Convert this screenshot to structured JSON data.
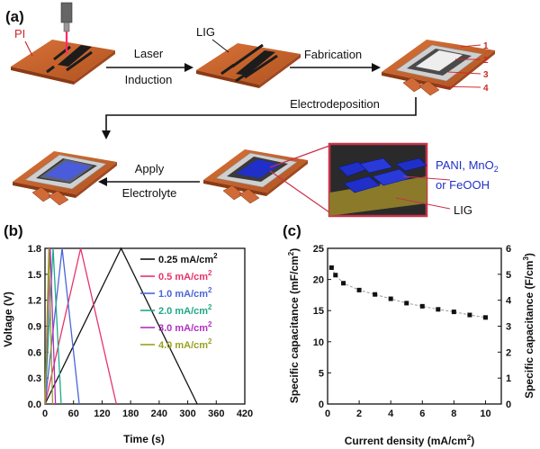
{
  "panel_a": {
    "label": "(a)",
    "pi_label": "PI",
    "step1_line1": "Laser",
    "step1_line2": "Induction",
    "lig_label": "LIG",
    "step2": "Fabrication",
    "layer_numbers": [
      "1",
      "2",
      "3",
      "4"
    ],
    "step3": "Electrodeposition",
    "step4_line1": "Apply",
    "step4_line2": "Electrolyte",
    "zoom_line1_a": "PANI, MnO",
    "zoom_line1_sub": "2",
    "zoom_line2": "or FeOOH",
    "zoom_lig": "LIG",
    "colors": {
      "substrate": "#c8642e",
      "substrate_dark": "#8a3a14",
      "lig": "#1c1c1c",
      "electrode_blue": "#1f2fc8",
      "zoom_frame": "#c8324a",
      "arrow": "#111111"
    }
  },
  "chart_data": [
    {
      "panel": "(b)",
      "type": "line",
      "title": "",
      "xlabel": "Time (s)",
      "ylabel": "Voltage (V)",
      "xlim": [
        0,
        420
      ],
      "ylim": [
        0,
        1.8
      ],
      "x_ticks": [
        "0",
        "60",
        "120",
        "180",
        "240",
        "300",
        "360",
        "420"
      ],
      "y_ticks": [
        "0.0",
        "0.3",
        "0.6",
        "0.9",
        "1.2",
        "1.5",
        "1.8"
      ],
      "legend_position": "top-right",
      "unit_superscript": "2",
      "series": [
        {
          "name": "0.25 mA/cm",
          "color": "#111111",
          "x": [
            0,
            160,
            320
          ],
          "y": [
            0,
            1.8,
            0
          ]
        },
        {
          "name": "0.5 mA/cm",
          "color": "#e8336a",
          "x": [
            0,
            75,
            150
          ],
          "y": [
            0,
            1.8,
            0
          ]
        },
        {
          "name": "1.0 mA/cm",
          "color": "#4a66d8",
          "x": [
            0,
            36,
            72
          ],
          "y": [
            0,
            1.8,
            0
          ]
        },
        {
          "name": "2.0 mA/cm",
          "color": "#20a888",
          "x": [
            0,
            17,
            34
          ],
          "y": [
            0,
            1.8,
            0
          ]
        },
        {
          "name": "3.0 mA/cm",
          "color": "#b030c0",
          "x": [
            0,
            11,
            22
          ],
          "y": [
            0,
            1.8,
            0
          ]
        },
        {
          "name": "4.0 mA/cm",
          "color": "#9aa020",
          "x": [
            0,
            8,
            16
          ],
          "y": [
            0,
            1.8,
            0
          ]
        }
      ]
    },
    {
      "panel": "(c)",
      "type": "scatter",
      "title": "",
      "xlabel": "Current density (mA/cm",
      "xlabel_sup": "2",
      "xlabel_end": ")",
      "ylabel": "Specific capacitance (mF/cm",
      "ylabel_sup": "2",
      "ylabel_end": ")",
      "y2label": "Specific capacitance (F/cm",
      "y2label_sup": "3",
      "y2label_end": ")",
      "xlim": [
        0,
        11
      ],
      "ylim": [
        0,
        25
      ],
      "y2lim": [
        0,
        6
      ],
      "x_ticks": [
        "0",
        "2",
        "4",
        "6",
        "8",
        "10"
      ],
      "y_ticks": [
        "0",
        "5",
        "10",
        "15",
        "20",
        "25"
      ],
      "y2_ticks": [
        "0",
        "1",
        "2",
        "3",
        "4",
        "5",
        "6"
      ],
      "x": [
        0.25,
        0.5,
        1.0,
        2.0,
        3.0,
        4.0,
        5.0,
        6.0,
        7.0,
        8.0,
        9.0,
        10.0
      ],
      "values": [
        21.9,
        20.7,
        19.4,
        18.3,
        17.6,
        16.9,
        16.2,
        15.7,
        15.2,
        14.8,
        14.3,
        13.9
      ],
      "marker_color": "#111111",
      "fit_color": "#999999"
    }
  ]
}
